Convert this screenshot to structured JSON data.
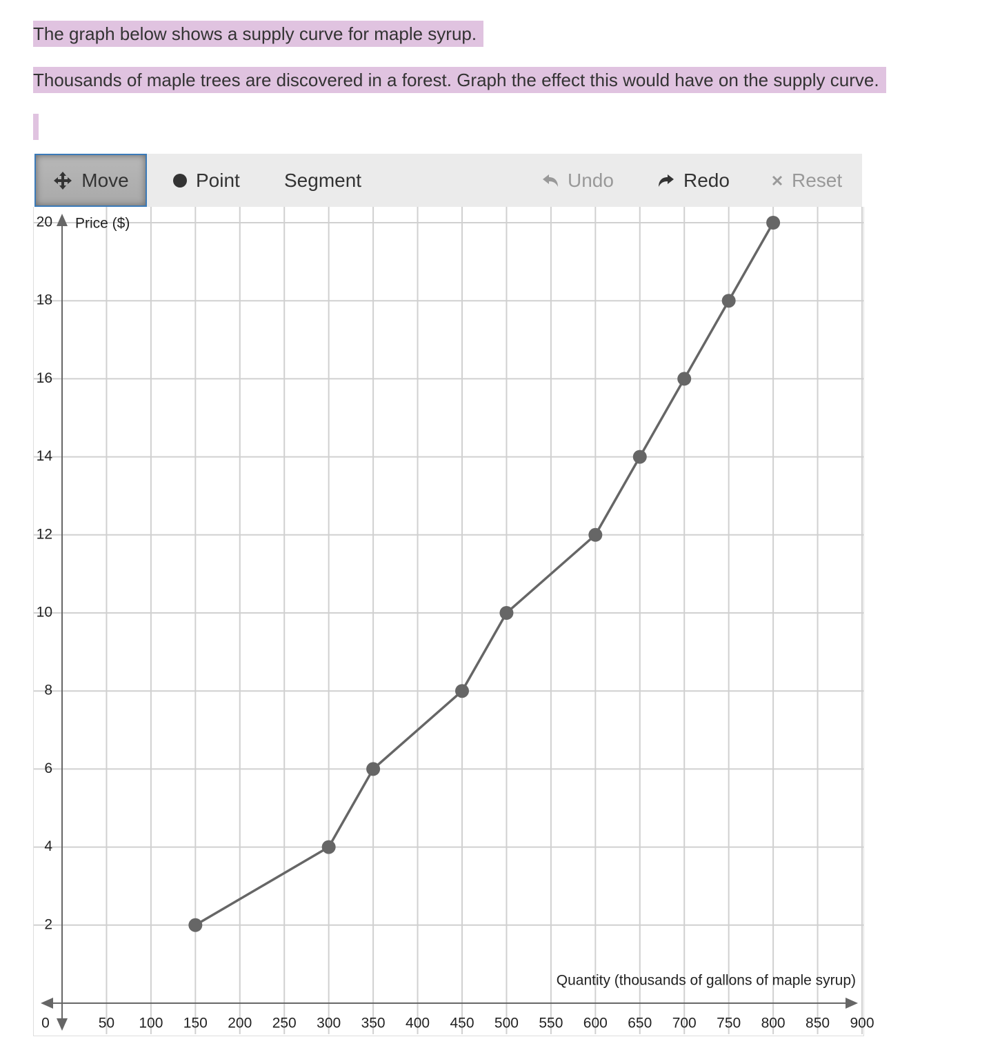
{
  "prompt": [
    "The graph below shows a supply curve for maple syrup.",
    "Thousands of maple trees are discovered in a forest. Graph the effect this would have on the supply curve."
  ],
  "toolbar": {
    "move": "Move",
    "point": "Point",
    "segment": "Segment",
    "undo": "Undo",
    "redo": "Redo",
    "reset": "Reset"
  },
  "chart_data": {
    "type": "line",
    "color": "#666666",
    "x_label": "Quantity (thousands of gallons of maple syrup)",
    "y_label": "Price ($)",
    "x": [
      150,
      300,
      350,
      450,
      500,
      600,
      650,
      700,
      750,
      800
    ],
    "values": [
      2,
      4,
      6,
      8,
      10,
      12,
      14,
      16,
      18,
      20
    ],
    "xlim": [
      0,
      900
    ],
    "ylim": [
      0,
      20
    ],
    "xticks": [
      0,
      50,
      100,
      150,
      200,
      250,
      300,
      350,
      400,
      450,
      500,
      550,
      600,
      650,
      700,
      750,
      800,
      850,
      900
    ],
    "yticks": [
      2,
      4,
      6,
      8,
      10,
      12,
      14,
      16,
      18,
      20
    ],
    "grid": true
  }
}
